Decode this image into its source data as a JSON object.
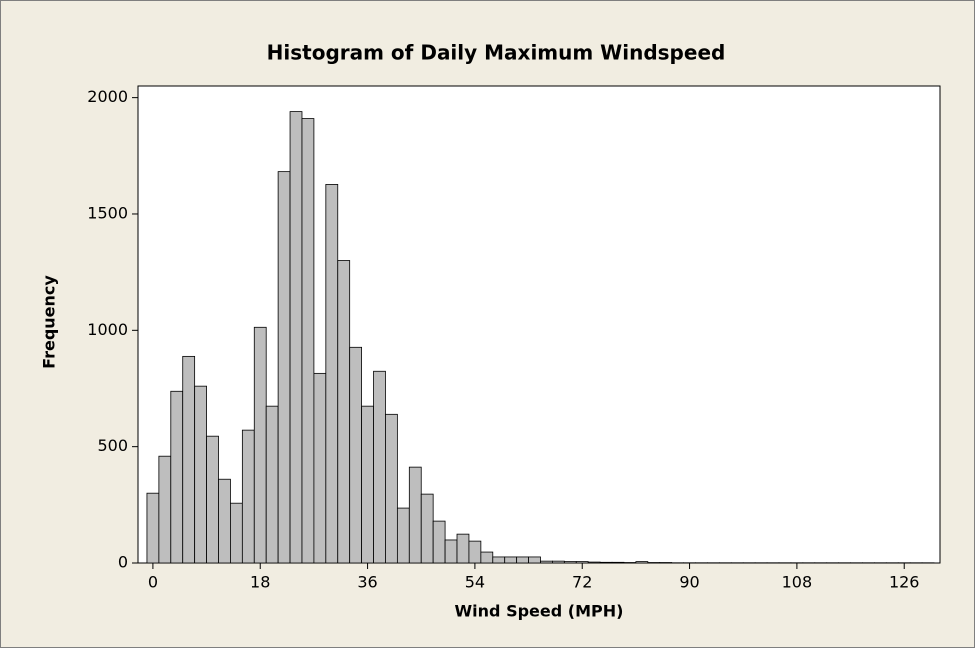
{
  "chart_data": {
    "type": "histogram",
    "title": "Histogram of Daily Maximum Windspeed",
    "x_label": "Wind Speed (MPH)",
    "y_label": "Frequency",
    "bins": [
      -1,
      1,
      3,
      5,
      7,
      9,
      11,
      13,
      15,
      17,
      19,
      21,
      23,
      25,
      27,
      29,
      31,
      33,
      35,
      37,
      39,
      41,
      43,
      45,
      47,
      49,
      51,
      53,
      55,
      57,
      59,
      61,
      63,
      65,
      67,
      69,
      71,
      73,
      75,
      77,
      79,
      81,
      83,
      85,
      87,
      89,
      91,
      93,
      95,
      97,
      99,
      101,
      103,
      105,
      107,
      109,
      111,
      113,
      115,
      117,
      119,
      121,
      123,
      125,
      127,
      129,
      131
    ],
    "values": [
      300,
      459,
      738,
      888,
      760,
      545,
      360,
      257,
      571,
      1013,
      674,
      1682,
      1940,
      1910,
      815,
      1627,
      1300,
      927,
      674,
      824,
      639,
      236,
      412,
      296,
      180,
      99,
      124,
      94,
      47,
      26,
      26,
      26,
      26,
      8,
      8,
      6,
      6,
      4,
      3,
      3,
      2,
      6,
      2,
      2,
      1,
      1,
      1,
      1,
      1,
      1,
      1,
      1,
      1,
      1,
      1,
      1,
      1,
      1,
      1,
      1,
      1,
      1,
      1,
      1,
      1,
      1
    ],
    "color": "#bebebe",
    "xlim": [
      -2.5,
      132
    ],
    "ylim": [
      0,
      2050
    ],
    "xticks": [
      0,
      18,
      36,
      54,
      72,
      90,
      108,
      126
    ],
    "yticks": [
      0,
      500,
      1000,
      1500,
      2000
    ]
  }
}
